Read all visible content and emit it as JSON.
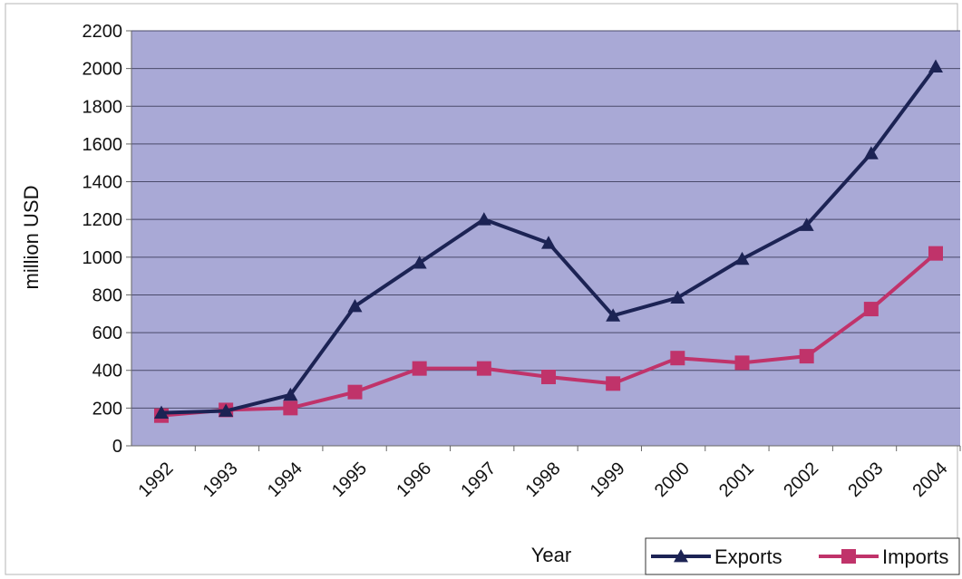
{
  "chart_data": {
    "type": "line",
    "title": "",
    "xlabel": "Year",
    "ylabel": "million USD",
    "categories": [
      "1992",
      "1993",
      "1994",
      "1995",
      "1996",
      "1997",
      "1998",
      "1999",
      "2000",
      "2001",
      "2002",
      "2003",
      "2004"
    ],
    "ylim": [
      0,
      2200
    ],
    "yticks": [
      0,
      200,
      400,
      600,
      800,
      1000,
      1200,
      1400,
      1600,
      1800,
      2000,
      2200
    ],
    "grid": true,
    "legend_position": "bottom-right",
    "plot_background": "#a9a9d6",
    "series": [
      {
        "name": "Exports",
        "color": "#1c2354",
        "marker": "triangle",
        "values": [
          175,
          185,
          270,
          740,
          970,
          1200,
          1075,
          690,
          785,
          990,
          1170,
          1550,
          2010
        ]
      },
      {
        "name": "Imports",
        "color": "#c0336a",
        "marker": "square",
        "values": [
          160,
          190,
          200,
          285,
          410,
          410,
          365,
          330,
          465,
          440,
          475,
          725,
          1020
        ]
      }
    ]
  }
}
